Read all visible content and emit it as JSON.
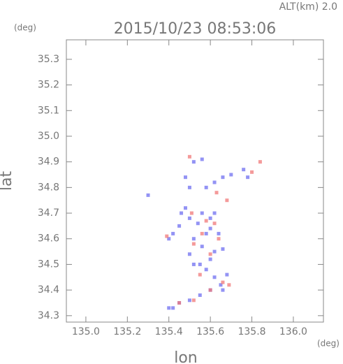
{
  "chart_data": {
    "type": "scatter",
    "title": "2015/10/23 08:53:06",
    "subtitle": "ALT(km) 2.0",
    "y_unit": "(deg)",
    "x_unit": "(deg)",
    "xlabel": "lon",
    "ylabel": "lat",
    "xlim": [
      134.906,
      136.145
    ],
    "ylim": [
      34.275,
      35.376
    ],
    "xticks": [
      {
        "value": 135,
        "label": "135.0"
      },
      135.2,
      135.4,
      135.6,
      135.8,
      {
        "value": 136,
        "label": "136.0"
      }
    ],
    "yticks": [
      34.3,
      34.4,
      34.5,
      34.6,
      34.7,
      34.8,
      34.9,
      {
        "value": 35,
        "label": "35.0"
      },
      35.1,
      35.2,
      35.3
    ],
    "series": [
      {
        "color": "#6f6ff0",
        "x": [
          135.4,
          135.42,
          135.45,
          135.5,
          135.55,
          135.6,
          135.65,
          135.62,
          135.58,
          135.55,
          135.6,
          135.62,
          135.56,
          135.52,
          135.58,
          135.6,
          135.54,
          135.5,
          135.56,
          135.6,
          135.64,
          135.66,
          135.68,
          135.48,
          135.45,
          135.42,
          135.52,
          135.5,
          135.46,
          135.62,
          135.58,
          135.62,
          135.66,
          135.7,
          135.76,
          135.5,
          135.48,
          135.52,
          135.56,
          135.78,
          135.3,
          135.66,
          135.4
        ],
        "y": [
          34.33,
          34.33,
          34.35,
          34.36,
          34.38,
          34.4,
          34.42,
          34.45,
          34.48,
          34.5,
          34.52,
          34.55,
          34.57,
          34.6,
          34.62,
          34.64,
          34.66,
          34.68,
          34.7,
          34.68,
          34.62,
          34.56,
          34.46,
          34.72,
          34.65,
          34.62,
          34.5,
          34.54,
          34.7,
          34.7,
          34.8,
          34.82,
          34.84,
          34.85,
          34.87,
          34.8,
          34.84,
          34.9,
          34.91,
          34.84,
          34.77,
          34.4,
          34.6
        ]
      },
      {
        "color": "#f07878",
        "x": [
          135.45,
          135.52,
          135.6,
          135.66,
          135.69,
          135.55,
          135.52,
          135.56,
          135.62,
          135.58,
          135.39,
          135.64,
          135.68,
          135.63,
          135.5,
          135.84,
          135.8,
          135.51,
          135.6
        ],
        "y": [
          34.35,
          34.36,
          34.4,
          34.43,
          34.42,
          34.46,
          34.58,
          34.62,
          34.66,
          34.67,
          34.61,
          34.6,
          34.75,
          34.78,
          34.92,
          34.9,
          34.86,
          34.7,
          34.54
        ]
      }
    ]
  }
}
